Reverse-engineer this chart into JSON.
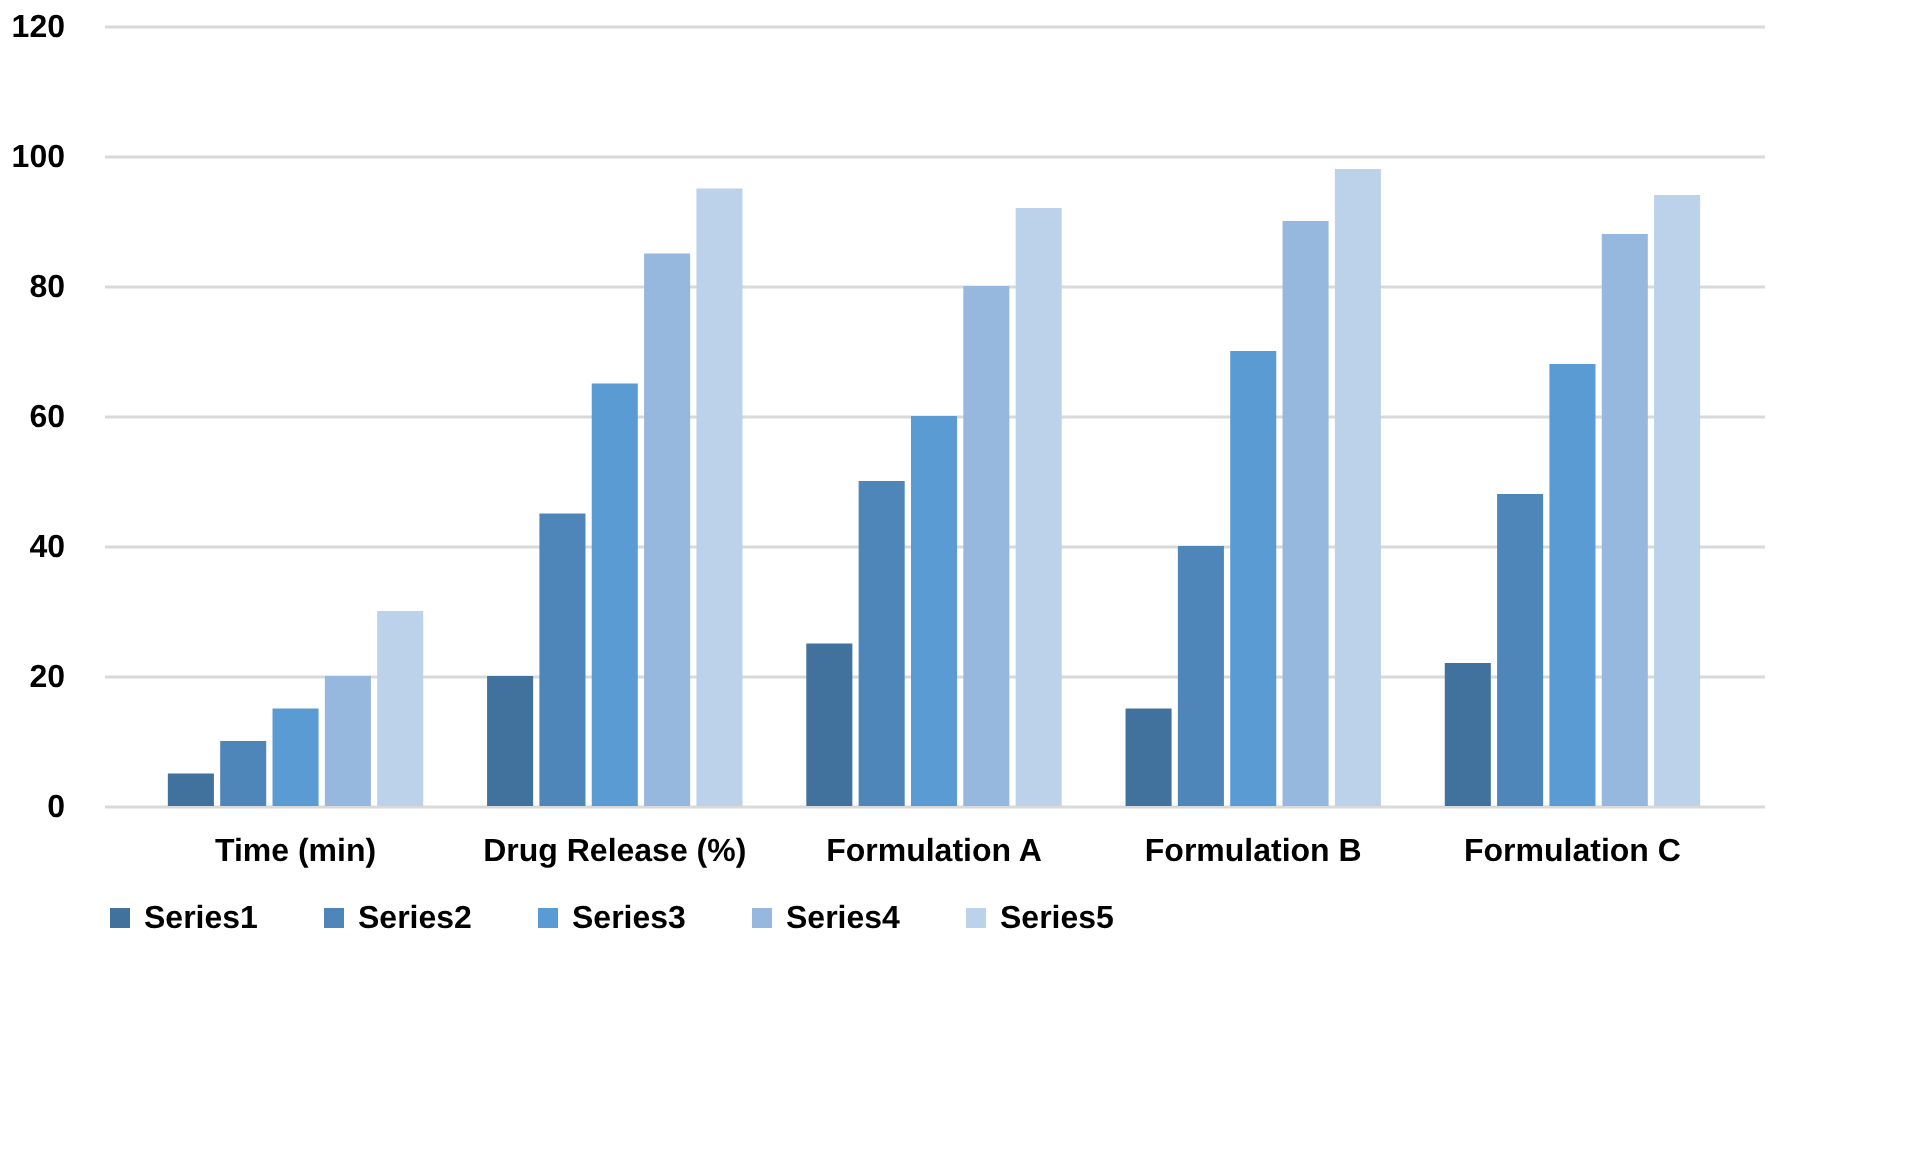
{
  "chart_data": {
    "type": "bar",
    "categories": [
      "Time (min)",
      "Drug Release (%)",
      "Formulation A",
      "Formulation B",
      "Formulation C"
    ],
    "series": [
      {
        "name": "Series1",
        "color": "#41729e",
        "values": [
          5,
          20,
          25,
          15,
          22
        ]
      },
      {
        "name": "Series2",
        "color": "#4f86ba",
        "values": [
          10,
          45,
          50,
          40,
          48
        ]
      },
      {
        "name": "Series3",
        "color": "#5b9bd4",
        "values": [
          15,
          65,
          60,
          70,
          68
        ]
      },
      {
        "name": "Series4",
        "color": "#97b8de",
        "values": [
          20,
          85,
          80,
          90,
          88
        ]
      },
      {
        "name": "Series5",
        "color": "#bcd2ea",
        "values": [
          30,
          95,
          92,
          98,
          94
        ]
      }
    ],
    "ylim": [
      0,
      120
    ],
    "yticks": [
      0,
      20,
      40,
      60,
      80,
      100,
      120
    ],
    "grid": "y",
    "legend": "bottom"
  }
}
